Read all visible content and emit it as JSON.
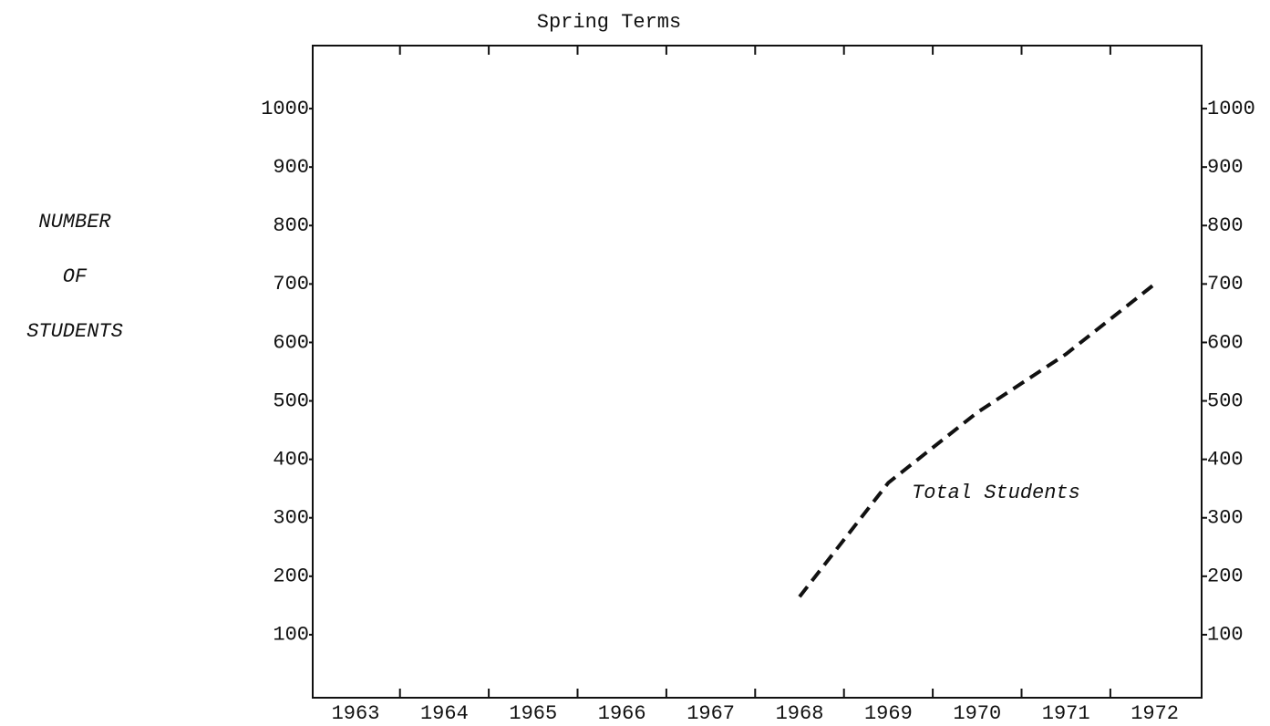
{
  "chart_data": {
    "type": "line",
    "title": "Spring Terms",
    "ylabel": [
      "NUMBER",
      "OF",
      "STUDENTS"
    ],
    "categories": [
      "1963",
      "1964",
      "1965",
      "1966",
      "1967",
      "1968",
      "1969",
      "1970",
      "1971",
      "1972"
    ],
    "series": [
      {
        "name": "Total Students",
        "color": "#111111",
        "values": [
          null,
          null,
          null,
          null,
          null,
          165,
          360,
          480,
          580,
          700
        ]
      }
    ],
    "ylim": [
      0,
      1100
    ],
    "yticks": [
      100,
      200,
      300,
      400,
      500,
      600,
      700,
      800,
      900,
      1000
    ],
    "y2lim": [
      0,
      1100
    ],
    "y2ticks": [
      100,
      200,
      300,
      400,
      500,
      600,
      700,
      800,
      900,
      1000
    ]
  }
}
